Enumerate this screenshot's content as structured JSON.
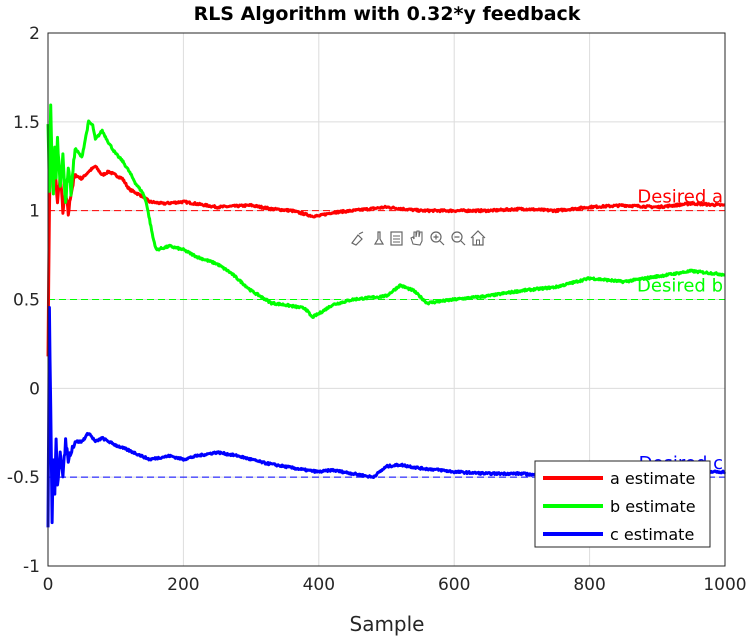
{
  "chart_data": {
    "type": "line",
    "title": "RLS Algorithm with 0.32*y feedback",
    "xlabel": "Sample",
    "ylabel": "",
    "xlim": [
      0,
      1000
    ],
    "ylim": [
      -1,
      2
    ],
    "xticks": [
      0,
      200,
      400,
      600,
      800,
      1000
    ],
    "yticks": [
      -1,
      -0.5,
      0,
      0.5,
      1,
      1.5,
      2
    ],
    "ytick_labels": [
      "-1",
      "-0.5",
      "0",
      "0.5",
      "1",
      "1.5",
      "2"
    ],
    "grid": true,
    "legend_position": "bottom-right",
    "series": [
      {
        "name": "a estimate",
        "color": "#ff0000",
        "x": [
          0,
          2,
          4,
          6,
          8,
          10,
          14,
          18,
          22,
          26,
          30,
          34,
          40,
          50,
          60,
          70,
          80,
          90,
          100,
          110,
          120,
          130,
          140,
          150,
          170,
          200,
          250,
          300,
          330,
          360,
          380,
          390,
          400,
          420,
          450,
          500,
          550,
          600,
          650,
          700,
          750,
          800,
          850,
          900,
          950,
          1000
        ],
        "y": [
          0.2,
          1.0,
          1.45,
          1.3,
          1.15,
          1.25,
          1.05,
          1.2,
          1.0,
          1.1,
          0.98,
          1.1,
          1.2,
          1.18,
          1.22,
          1.25,
          1.2,
          1.22,
          1.2,
          1.18,
          1.12,
          1.1,
          1.08,
          1.05,
          1.04,
          1.05,
          1.02,
          1.03,
          1.01,
          1.0,
          0.98,
          0.97,
          0.97,
          0.99,
          1.0,
          1.02,
          1.0,
          1.0,
          1.0,
          1.01,
          1.0,
          1.02,
          1.03,
          1.02,
          1.04,
          1.03
        ]
      },
      {
        "name": "b estimate",
        "color": "#00ff00",
        "x": [
          0,
          2,
          4,
          6,
          8,
          10,
          12,
          14,
          18,
          22,
          26,
          30,
          34,
          40,
          50,
          60,
          66,
          70,
          80,
          90,
          100,
          110,
          120,
          130,
          140,
          145,
          150,
          155,
          160,
          180,
          200,
          220,
          250,
          270,
          300,
          330,
          350,
          380,
          390,
          400,
          420,
          450,
          500,
          520,
          540,
          560,
          600,
          650,
          700,
          750,
          800,
          850,
          900,
          950,
          1000
        ],
        "y": [
          1.5,
          1.1,
          1.6,
          1.25,
          1.1,
          1.35,
          1.2,
          1.4,
          1.15,
          1.3,
          1.05,
          1.25,
          1.1,
          1.35,
          1.3,
          1.5,
          1.48,
          1.4,
          1.45,
          1.38,
          1.32,
          1.28,
          1.22,
          1.15,
          1.1,
          1.05,
          0.95,
          0.85,
          0.78,
          0.8,
          0.78,
          0.74,
          0.7,
          0.65,
          0.55,
          0.48,
          0.47,
          0.45,
          0.4,
          0.42,
          0.47,
          0.5,
          0.52,
          0.58,
          0.55,
          0.48,
          0.5,
          0.52,
          0.55,
          0.57,
          0.62,
          0.6,
          0.63,
          0.66,
          0.64
        ]
      },
      {
        "name": "c estimate",
        "color": "#0000ff",
        "x": [
          0,
          2,
          4,
          6,
          8,
          10,
          12,
          14,
          18,
          22,
          26,
          30,
          34,
          40,
          50,
          60,
          70,
          80,
          90,
          100,
          120,
          150,
          180,
          200,
          220,
          250,
          280,
          300,
          320,
          350,
          380,
          400,
          420,
          450,
          480,
          500,
          520,
          550,
          580,
          600,
          650,
          700,
          750,
          800,
          850,
          900,
          950,
          1000
        ],
        "y": [
          -0.8,
          0.45,
          -0.1,
          -0.75,
          -0.4,
          -0.6,
          -0.3,
          -0.55,
          -0.35,
          -0.5,
          -0.3,
          -0.4,
          -0.35,
          -0.3,
          -0.3,
          -0.25,
          -0.3,
          -0.28,
          -0.3,
          -0.32,
          -0.35,
          -0.4,
          -0.38,
          -0.4,
          -0.38,
          -0.36,
          -0.38,
          -0.4,
          -0.42,
          -0.44,
          -0.46,
          -0.47,
          -0.46,
          -0.48,
          -0.5,
          -0.44,
          -0.43,
          -0.45,
          -0.46,
          -0.47,
          -0.48,
          -0.48,
          -0.5,
          -0.5,
          -0.49,
          -0.48,
          -0.47,
          -0.47
        ]
      }
    ],
    "reference_lines": [
      {
        "label": "Desired a",
        "y": 1,
        "color": "#ff0000"
      },
      {
        "label": "Desired b",
        "y": 0.5,
        "color": "#00ff00"
      },
      {
        "label": "Desired c",
        "y": -0.5,
        "color": "#0000ff"
      }
    ]
  },
  "toolbar": {
    "icons": [
      "data-cursor-icon",
      "brush-icon",
      "link-icon",
      "pan-hand-icon",
      "zoom-in-icon",
      "zoom-out-icon",
      "home-icon"
    ]
  }
}
